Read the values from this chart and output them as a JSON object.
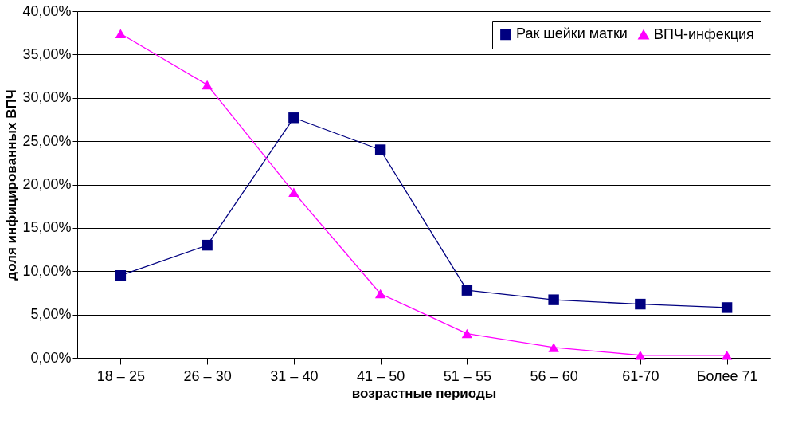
{
  "chart_data": {
    "type": "line",
    "xlabel": "возрастные периоды",
    "ylabel": "доля инфицированных ВПЧ",
    "categories": [
      "18 – 25",
      "26 – 30",
      "31 – 40",
      "41 – 50",
      "51 – 55",
      "56 – 60",
      "61-70",
      "Более 71"
    ],
    "series": [
      {
        "name": "Рак шейки матки",
        "color": "#000080",
        "marker": "square",
        "values": [
          9.5,
          13.0,
          27.7,
          24.0,
          7.8,
          6.7,
          6.2,
          5.8
        ]
      },
      {
        "name": "ВПЧ-инфекция",
        "color": "#ff00ff",
        "marker": "triangle",
        "values": [
          37.4,
          31.5,
          19.1,
          7.4,
          2.8,
          1.2,
          0.3,
          0.3
        ]
      }
    ],
    "ylim": [
      0,
      40
    ],
    "yticks": [
      {
        "value": 0,
        "label": "0,00%"
      },
      {
        "value": 5,
        "label": "5,00%"
      },
      {
        "value": 10,
        "label": "10,00%"
      },
      {
        "value": 15,
        "label": "15,00%"
      },
      {
        "value": 20,
        "label": "20,00%"
      },
      {
        "value": 25,
        "label": "25,00%"
      },
      {
        "value": 30,
        "label": "30,00%"
      },
      {
        "value": 35,
        "label": "35,00%"
      },
      {
        "value": 40,
        "label": "40,00%"
      }
    ],
    "grid": "y",
    "legend": "top right",
    "line_style": "solid"
  }
}
